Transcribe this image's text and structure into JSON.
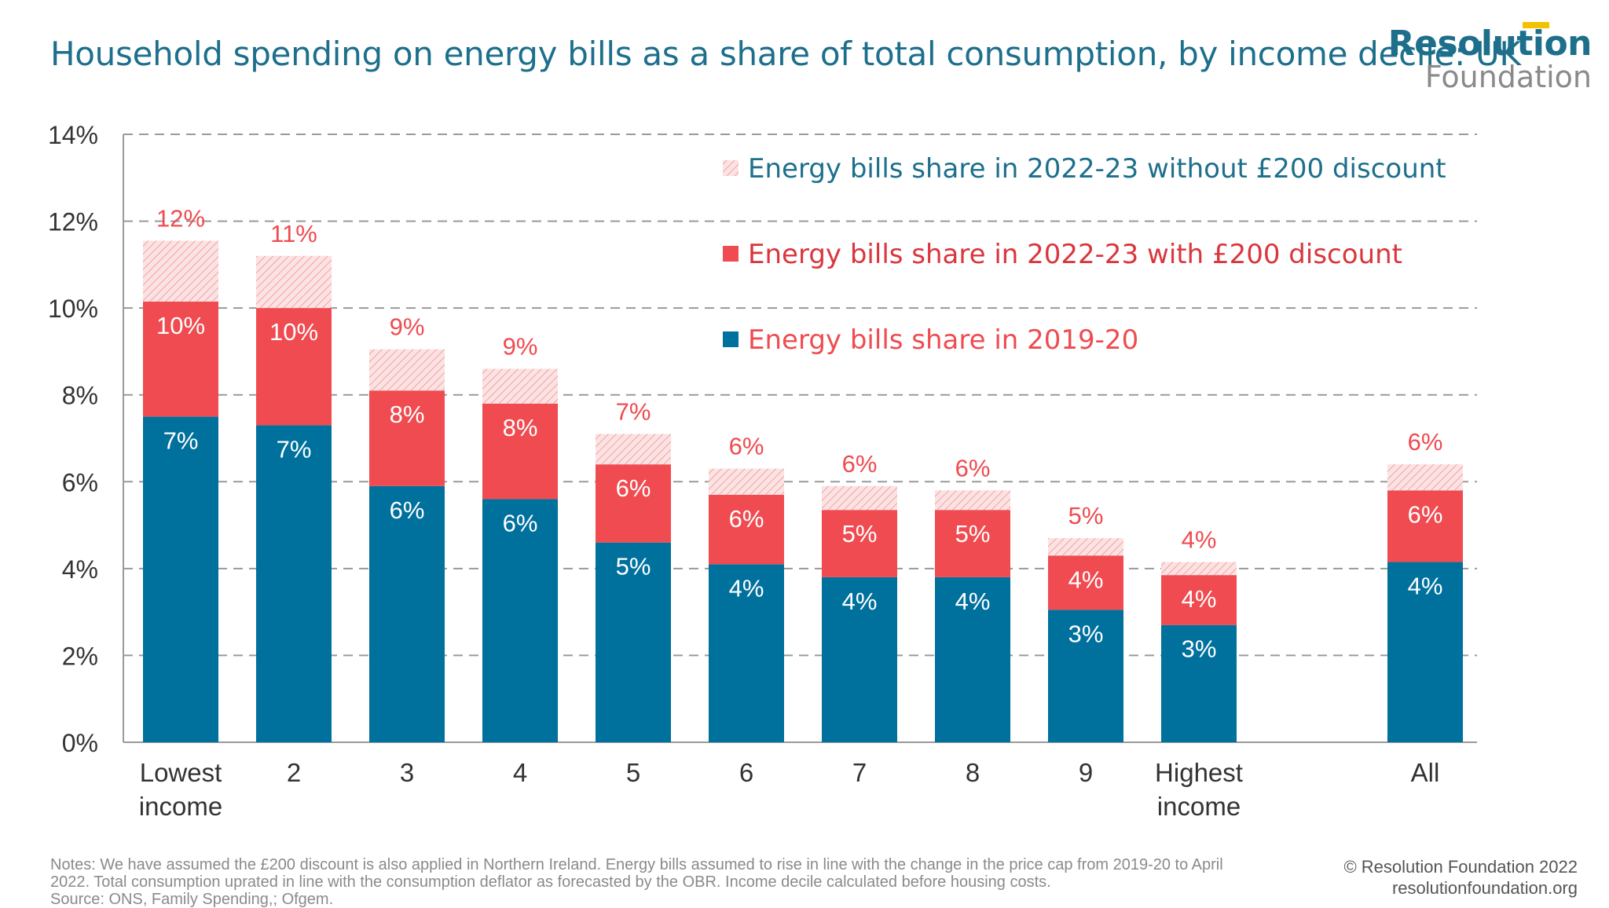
{
  "title": "Household spending on energy bills as a share of total consumption, by income decile: UK",
  "logo": {
    "top": "Resolution",
    "bottom": "Foundation",
    "accent_color": "#f2c200"
  },
  "notes": {
    "line1": "Notes: We have assumed the £200 discount is also applied in Northern Ireland. Energy bills assumed to rise in line with the change in the price cap from 2019-20 to April",
    "line2": "2022. Total consumption uprated in line with the consumption deflator as forecasted by the OBR. Income decile calculated before housing costs.",
    "line3": "Source: ONS, Family Spending,; Ofgem."
  },
  "credit": {
    "line1": "© Resolution Foundation 2022",
    "line2": "resolutionfoundation.org"
  },
  "chart_data": {
    "type": "bar",
    "stacked": true,
    "categories": [
      [
        "Lowest",
        "income"
      ],
      [
        "2"
      ],
      [
        "3"
      ],
      [
        "4"
      ],
      [
        "5"
      ],
      [
        "6"
      ],
      [
        "7"
      ],
      [
        "8"
      ],
      [
        "9"
      ],
      [
        "Highest",
        "income"
      ],
      [
        "All"
      ]
    ],
    "series": [
      {
        "name": "Energy bills share in 2019-20",
        "color": "#00709d",
        "style": "solid",
        "values": [
          7.5,
          7.3,
          5.9,
          5.6,
          4.6,
          4.1,
          3.8,
          3.8,
          3.05,
          2.7,
          4.15
        ],
        "labels": [
          "7%",
          "7%",
          "6%",
          "6%",
          "5%",
          "4%",
          "4%",
          "4%",
          "3%",
          "3%",
          "4%"
        ],
        "label_color": "#ffffff"
      },
      {
        "name": "Energy bills share in 2022-23 with £200 discount",
        "color": "#ef4b50",
        "style": "solid",
        "values": [
          2.65,
          2.7,
          2.2,
          2.2,
          1.8,
          1.6,
          1.55,
          1.55,
          1.25,
          1.15,
          1.65
        ],
        "labels": [
          "10%",
          "10%",
          "8%",
          "8%",
          "6%",
          "6%",
          "5%",
          "5%",
          "4%",
          "4%",
          "6%"
        ],
        "label_color": "#ffffff"
      },
      {
        "name": "Energy bills share in 2022-23 without £200 discount",
        "color": "#ef4b50",
        "style": "hatched",
        "values": [
          1.4,
          1.2,
          0.95,
          0.8,
          0.7,
          0.6,
          0.55,
          0.45,
          0.4,
          0.3,
          0.6
        ],
        "labels": [
          "12%",
          "11%",
          "9%",
          "9%",
          "7%",
          "6%",
          "6%",
          "6%",
          "5%",
          "4%",
          "6%"
        ],
        "label_color": "#ef4b50"
      }
    ],
    "legend_order": [
      2,
      1,
      0
    ],
    "legend_text_colors": [
      "#1d6f8c",
      "#d9363d",
      "#ef4b50"
    ],
    "yticks": [
      0,
      2,
      4,
      6,
      8,
      10,
      12,
      14
    ],
    "ytick_labels": [
      "0%",
      "2%",
      "4%",
      "6%",
      "8%",
      "10%",
      "12%",
      "14%"
    ],
    "ylim": [
      0,
      14
    ],
    "grid": true,
    "legend_position": "top-right"
  }
}
